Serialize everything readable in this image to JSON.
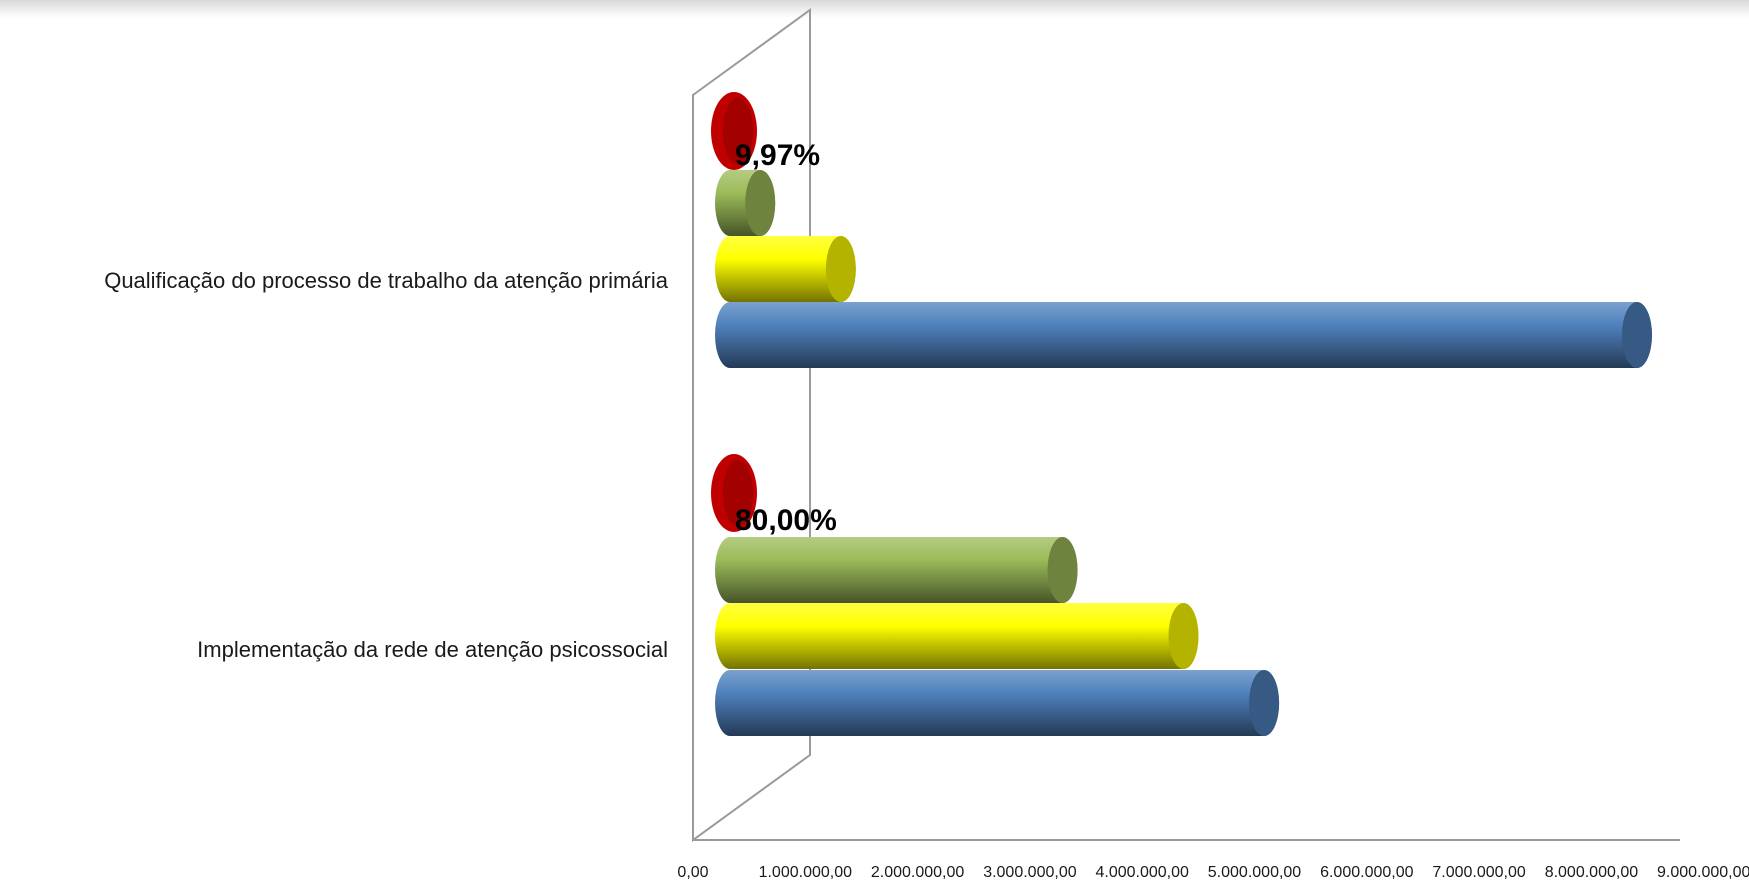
{
  "chart_data": {
    "type": "bar",
    "orientation": "horizontal",
    "style": "3d-cylinder",
    "categories": [
      "Qualificação do processo de trabalho da atenção primária",
      "Implementação da rede de atenção psicossocial"
    ],
    "series": [
      {
        "color": "#4f81bd",
        "values": [
          9000000,
          5300000
        ]
      },
      {
        "color": "#ffff00",
        "values": [
          1100000,
          4500000
        ]
      },
      {
        "color": "#9bbb59",
        "values": [
          300000,
          3300000
        ]
      },
      {
        "color": "#c00000",
        "values": [
          0,
          0
        ]
      }
    ],
    "data_labels": [
      "9,97%",
      "80,00%"
    ],
    "x_ticks": [
      "0,00",
      "1.000.000,00",
      "2.000.000,00",
      "3.000.000,00",
      "4.000.000,00",
      "5.000.000,00",
      "6.000.000,00",
      "7.000.000,00",
      "8.000.000,00",
      "9.000.000,00"
    ],
    "xlim": [
      0,
      9000000
    ],
    "grid": false,
    "legend": "none",
    "title": "",
    "xlabel": "",
    "ylabel": ""
  }
}
